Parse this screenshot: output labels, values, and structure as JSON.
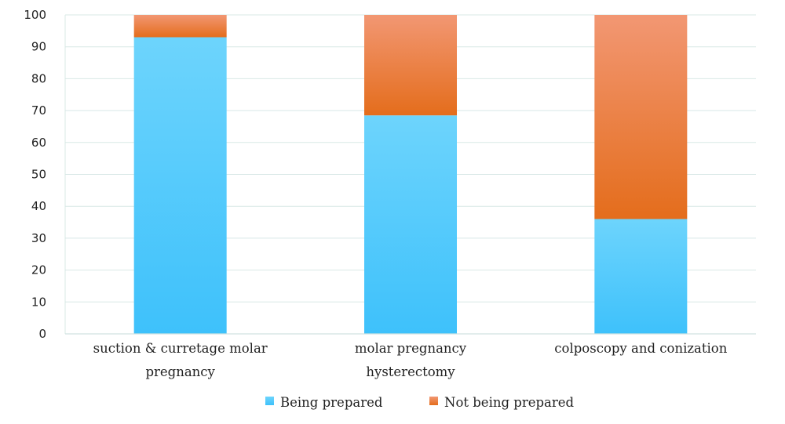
{
  "chart_data": {
    "type": "bar",
    "stacked": true,
    "categories": [
      [
        "suction & curretage molar",
        "pregnancy"
      ],
      [
        "molar pregnancy",
        "hysterectomy"
      ],
      [
        "colposcopy and conization"
      ]
    ],
    "series": [
      {
        "name": "Being prepared",
        "values": [
          93,
          68.5,
          36
        ],
        "color": "#4cc8fa"
      },
      {
        "name": "Not being prepared",
        "values": [
          7,
          31.5,
          64
        ],
        "color": "#ed7d31"
      }
    ],
    "ylim": [
      0,
      100
    ],
    "yticks": [
      0,
      10,
      20,
      30,
      40,
      50,
      60,
      70,
      80,
      90,
      100
    ],
    "grid": true,
    "legend_position": "bottom",
    "title": "",
    "xlabel": "",
    "ylabel": ""
  }
}
